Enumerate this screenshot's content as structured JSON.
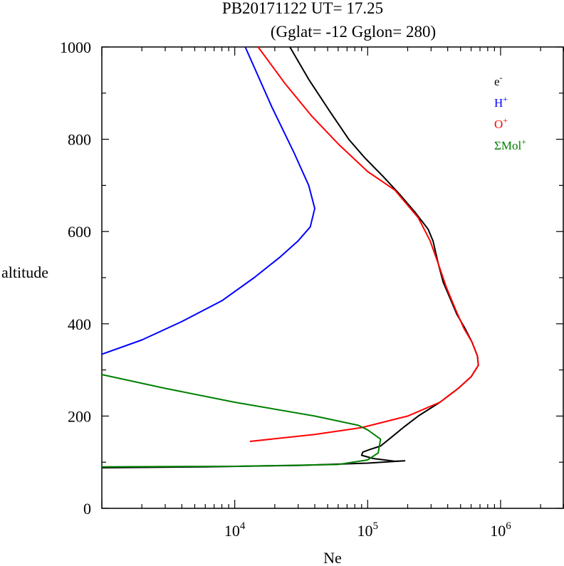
{
  "chart_data": {
    "type": "line",
    "title": "PB20171122   UT=  17.25",
    "subtitle": "(Gglat= -12   Gglon=  280)",
    "xlabel": "Ne",
    "ylabel": "altitude",
    "xscale": "log",
    "xlim": [
      1000,
      3000000
    ],
    "ylim": [
      0,
      1000
    ],
    "x_tick_labels": [
      {
        "base": "10",
        "exp": "4",
        "value": 10000
      },
      {
        "base": "10",
        "exp": "5",
        "value": 100000
      },
      {
        "base": "10",
        "exp": "6",
        "value": 1000000
      }
    ],
    "y_tick_labels": [
      {
        "label": "0",
        "value": 0
      },
      {
        "label": "200",
        "value": 200
      },
      {
        "label": "400",
        "value": 400
      },
      {
        "label": "600",
        "value": 600
      },
      {
        "label": "800",
        "value": 800
      },
      {
        "label": "1000",
        "value": 1000
      }
    ],
    "legend_position": "top-right",
    "series": [
      {
        "name": "e-",
        "legend_base": "e",
        "legend_sup": "-",
        "color": "#000000",
        "points": [
          [
            1000,
            88
          ],
          [
            6000,
            90
          ],
          [
            30000,
            93
          ],
          [
            100000,
            98
          ],
          [
            190000,
            103
          ],
          [
            160000,
            102
          ],
          [
            110000,
            108
          ],
          [
            90000,
            115
          ],
          [
            92000,
            122
          ],
          [
            105000,
            128
          ],
          [
            125000,
            135
          ],
          [
            145000,
            150
          ],
          [
            160000,
            160
          ],
          [
            185000,
            175
          ],
          [
            240000,
            200
          ],
          [
            350000,
            230
          ],
          [
            480000,
            260
          ],
          [
            600000,
            285
          ],
          [
            680000,
            310
          ],
          [
            670000,
            330
          ],
          [
            610000,
            360
          ],
          [
            540000,
            390
          ],
          [
            470000,
            420
          ],
          [
            410000,
            460
          ],
          [
            370000,
            490
          ],
          [
            340000,
            530
          ],
          [
            310000,
            580
          ],
          [
            285000,
            605
          ],
          [
            230000,
            640
          ],
          [
            175000,
            680
          ],
          [
            130000,
            720
          ],
          [
            95000,
            760
          ],
          [
            72000,
            800
          ],
          [
            52000,
            860
          ],
          [
            36000,
            930
          ],
          [
            26000,
            1000
          ]
        ]
      },
      {
        "name": "H+",
        "legend_base": "H",
        "legend_sup": "+",
        "color": "#0000ff",
        "points": [
          [
            1000,
            334
          ],
          [
            2000,
            365
          ],
          [
            4000,
            405
          ],
          [
            8000,
            450
          ],
          [
            14000,
            500
          ],
          [
            22000,
            545
          ],
          [
            30000,
            580
          ],
          [
            37000,
            610
          ],
          [
            40000,
            650
          ],
          [
            36000,
            700
          ],
          [
            28000,
            770
          ],
          [
            19000,
            870
          ],
          [
            12000,
            1000
          ]
        ]
      },
      {
        "name": "O+",
        "legend_base": "O",
        "legend_sup": "+",
        "color": "#ff0000",
        "points": [
          [
            13000,
            145
          ],
          [
            40000,
            160
          ],
          [
            90000,
            175
          ],
          [
            200000,
            200
          ],
          [
            350000,
            230
          ],
          [
            480000,
            260
          ],
          [
            600000,
            285
          ],
          [
            680000,
            310
          ],
          [
            670000,
            330
          ],
          [
            610000,
            360
          ],
          [
            530000,
            390
          ],
          [
            460000,
            430
          ],
          [
            390000,
            480
          ],
          [
            340000,
            530
          ],
          [
            295000,
            580
          ],
          [
            240000,
            630
          ],
          [
            160000,
            690
          ],
          [
            100000,
            730
          ],
          [
            60000,
            790
          ],
          [
            38000,
            850
          ],
          [
            24000,
            920
          ],
          [
            15000,
            1000
          ]
        ]
      },
      {
        "name": "ΣMol+",
        "legend_base": "ΣMol",
        "legend_sup": "+",
        "color": "#008000",
        "points": [
          [
            1000,
            90
          ],
          [
            10000,
            91
          ],
          [
            60000,
            95
          ],
          [
            100000,
            105
          ],
          [
            120000,
            120
          ],
          [
            125000,
            150
          ],
          [
            100000,
            170
          ],
          [
            85000,
            180
          ],
          [
            40000,
            200
          ],
          [
            10000,
            230
          ],
          [
            3000,
            260
          ],
          [
            1000,
            290
          ]
        ]
      }
    ]
  }
}
